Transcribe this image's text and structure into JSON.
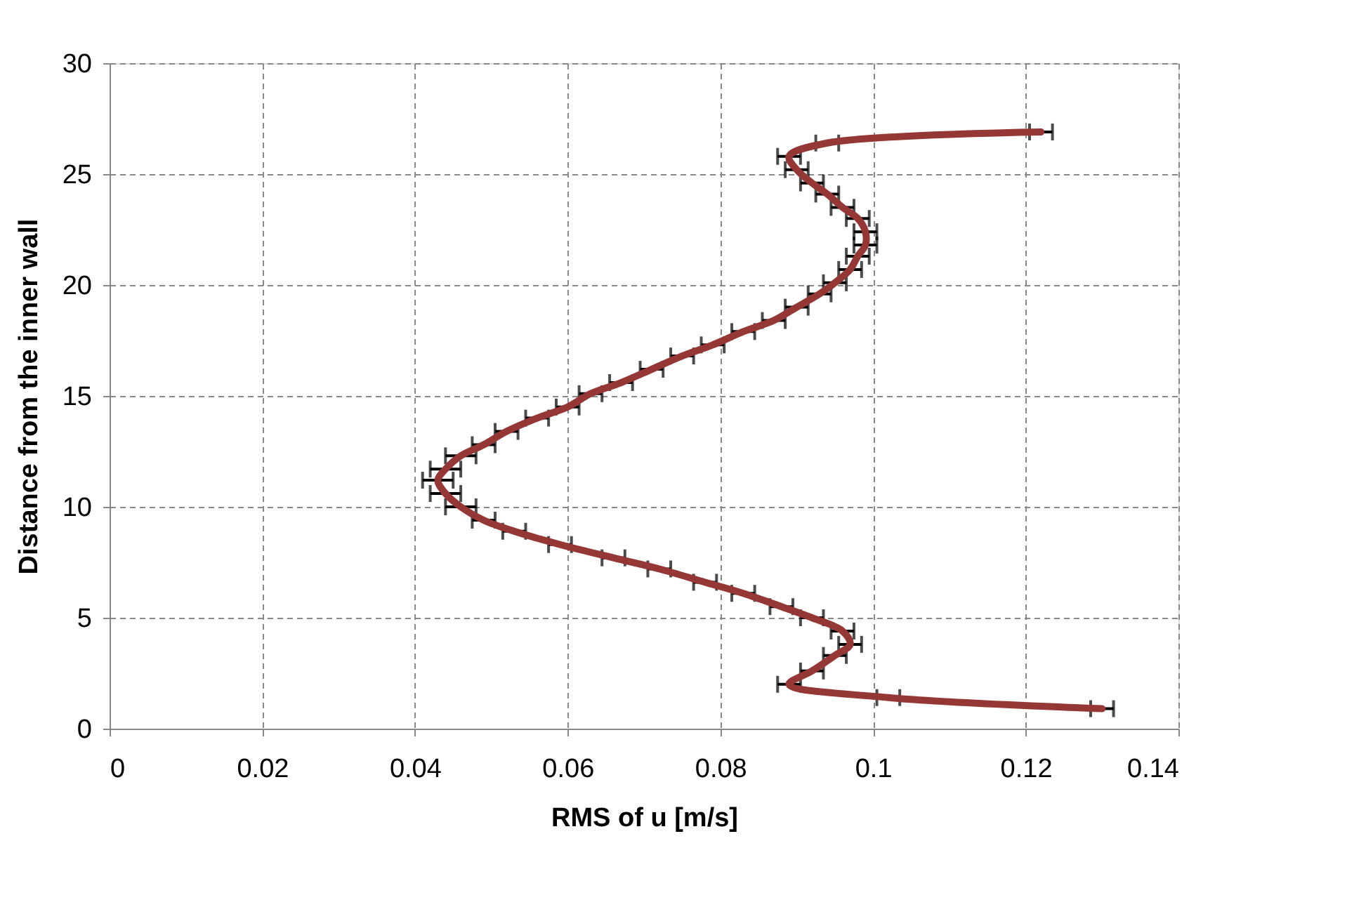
{
  "chart_data": {
    "type": "line",
    "xlabel": "RMS of u [m/s]",
    "ylabel": "Distance from the inner wall",
    "xlim": [
      0,
      0.14
    ],
    "xticks": [
      0,
      0.02,
      0.04,
      0.06,
      0.08,
      0.1,
      0.12,
      0.14
    ],
    "ylim": [
      0,
      30
    ],
    "yticks": [
      0,
      5,
      10,
      15,
      20,
      25,
      30
    ],
    "grid": true,
    "legend": false,
    "marker": "none",
    "line_style": "solid",
    "series": [
      {
        "color": "#953735",
        "x": [
          0.13,
          0.102,
          0.089,
          0.092,
          0.095,
          0.097,
          0.096,
          0.092,
          0.088,
          0.083,
          0.078,
          0.072,
          0.066,
          0.059,
          0.053,
          0.049,
          0.046,
          0.044,
          0.043,
          0.044,
          0.046,
          0.049,
          0.052,
          0.056,
          0.06,
          0.063,
          0.067,
          0.071,
          0.075,
          0.079,
          0.083,
          0.087,
          0.09,
          0.093,
          0.095,
          0.097,
          0.098,
          0.099,
          0.099,
          0.098,
          0.096,
          0.094,
          0.092,
          0.09,
          0.089,
          0.094,
          0.122
        ],
        "values": [
          0.9,
          1.4,
          2.0,
          2.6,
          3.3,
          3.8,
          4.4,
          5.0,
          5.5,
          6.1,
          6.6,
          7.2,
          7.7,
          8.3,
          8.9,
          9.4,
          10.0,
          10.6,
          11.2,
          11.7,
          12.3,
          12.8,
          13.4,
          14.0,
          14.5,
          15.1,
          15.6,
          16.2,
          16.8,
          17.3,
          17.9,
          18.4,
          19.0,
          19.6,
          20.1,
          20.7,
          21.3,
          21.8,
          22.4,
          23.0,
          23.5,
          24.1,
          24.6,
          25.2,
          25.8,
          26.4,
          26.9
        ],
        "xerrors": [
          0.0015,
          0.0015,
          0.0015,
          0.0015,
          0.0015,
          0.0015,
          0.0015,
          0.0015,
          0.0015,
          0.0015,
          0.0015,
          0.0015,
          0.0015,
          0.0015,
          0.0015,
          0.0015,
          0.002,
          0.002,
          0.002,
          0.002,
          0.002,
          0.0015,
          0.0015,
          0.0015,
          0.0015,
          0.0015,
          0.0015,
          0.0015,
          0.0015,
          0.0015,
          0.0015,
          0.0015,
          0.0015,
          0.0015,
          0.0015,
          0.0015,
          0.0015,
          0.0015,
          0.0015,
          0.0015,
          0.0015,
          0.0015,
          0.0015,
          0.0015,
          0.0015,
          0.0015,
          0.0015
        ]
      }
    ]
  }
}
